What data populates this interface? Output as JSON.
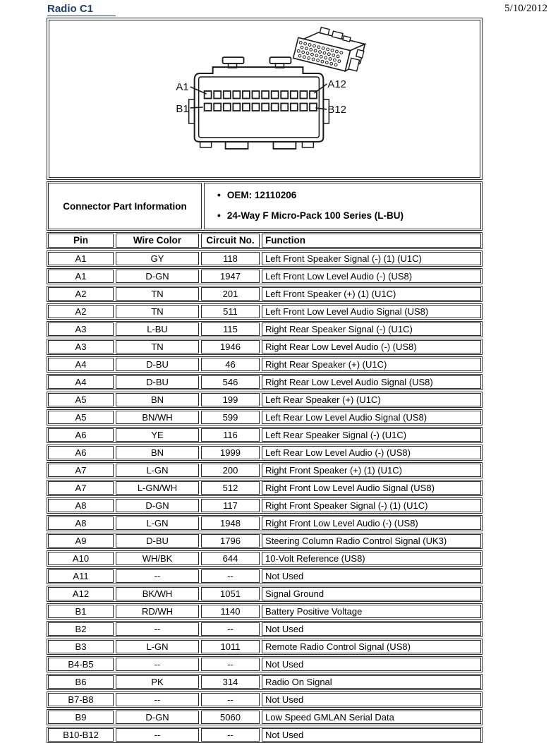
{
  "header": {
    "title": "Radio C1",
    "date": "5/10/2012"
  },
  "colors": {
    "title_blue": "#1f3f6e",
    "line_black": "#1a1a1a"
  },
  "connector_diagram": {
    "pin_labels": {
      "top_left": "A1",
      "top_right": "A12",
      "bottom_left": "B1",
      "bottom_right": "B12"
    },
    "rows": 2,
    "pins_per_row": 12
  },
  "part_info": {
    "label": "Connector Part Information",
    "bullets": [
      "OEM: 12110206",
      "24-Way F Micro-Pack 100 Series (L-BU)"
    ]
  },
  "pin_table": {
    "headers": [
      "Pin",
      "Wire Color",
      "Circuit No.",
      "Function"
    ],
    "rows": [
      [
        "A1",
        "GY",
        "118",
        "Left Front Speaker Signal (-) (1) (U1C)"
      ],
      [
        "A1",
        "D-GN",
        "1947",
        "Left Front Low Level Audio (-) (US8)"
      ],
      [
        "A2",
        "TN",
        "201",
        "Left Front Speaker (+) (1) (U1C)"
      ],
      [
        "A2",
        "TN",
        "511",
        "Left Front Low Level Audio Signal (US8)"
      ],
      [
        "A3",
        "L-BU",
        "115",
        "Right Rear Speaker Signal (-) (U1C)"
      ],
      [
        "A3",
        "TN",
        "1946",
        "Right Rear Low Level Audio (-) (US8)"
      ],
      [
        "A4",
        "D-BU",
        "46",
        "Right Rear Speaker (+) (U1C)"
      ],
      [
        "A4",
        "D-BU",
        "546",
        "Right Rear Low Level Audio Signal (US8)"
      ],
      [
        "A5",
        "BN",
        "199",
        "Left Rear Speaker (+) (U1C)"
      ],
      [
        "A5",
        "BN/WH",
        "599",
        "Left Rear Low Level Audio Signal (US8)"
      ],
      [
        "A6",
        "YE",
        "116",
        "Left Rear Speaker Signal (-) (U1C)"
      ],
      [
        "A6",
        "BN",
        "1999",
        "Left Rear Low Level Audio (-) (US8)"
      ],
      [
        "A7",
        "L-GN",
        "200",
        "Right Front Speaker (+) (1) (U1C)"
      ],
      [
        "A7",
        "L-GN/WH",
        "512",
        "Right Front Low Level Audio Signal (US8)"
      ],
      [
        "A8",
        "D-GN",
        "117",
        "Right Front Speaker Signal (-) (1) (U1C)"
      ],
      [
        "A8",
        "L-GN",
        "1948",
        "Right Front Low Level Audio (-) (US8)"
      ],
      [
        "A9",
        "D-BU",
        "1796",
        "Steering Column Radio Control Signal (UK3)"
      ],
      [
        "A10",
        "WH/BK",
        "644",
        "10-Volt Reference (US8)"
      ],
      [
        "A11",
        "--",
        "--",
        "Not Used"
      ],
      [
        "A12",
        "BK/WH",
        "1051",
        "Signal Ground"
      ],
      [
        "B1",
        "RD/WH",
        "1140",
        "Battery Positive Voltage"
      ],
      [
        "B2",
        "--",
        "--",
        "Not Used"
      ],
      [
        "B3",
        "L-GN",
        "1011",
        "Remote Radio Control Signal (US8)"
      ],
      [
        "B4-B5",
        "--",
        "--",
        "Not Used"
      ],
      [
        "B6",
        "PK",
        "314",
        "Radio On Signal"
      ],
      [
        "B7-B8",
        "--",
        "--",
        "Not Used"
      ],
      [
        "B9",
        "D-GN",
        "5060",
        "Low Speed GMLAN Serial Data"
      ],
      [
        "B10-B12",
        "--",
        "--",
        "Not Used"
      ]
    ]
  }
}
